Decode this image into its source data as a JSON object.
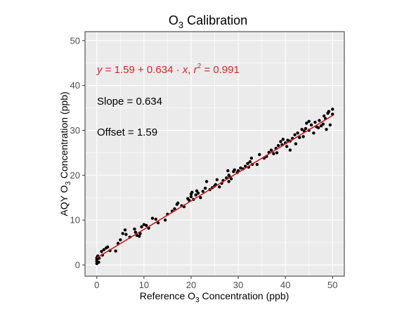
{
  "chart_data": {
    "type": "scatter",
    "title_main": "O",
    "title_sub": "3",
    "title_rest": " Calibration",
    "xlabel_main": "Reference O",
    "xlabel_sub": "3",
    "xlabel_rest": " Concentration (ppb)",
    "ylabel_main": "AQY O",
    "ylabel_sub": "3",
    "ylabel_rest": " Concentration (ppb)",
    "xlim": [
      -2.5,
      52.5
    ],
    "ylim": [
      -2.5,
      52
    ],
    "x_ticks": [
      0,
      10,
      20,
      30,
      40,
      50
    ],
    "y_ticks": [
      0,
      10,
      20,
      30,
      40,
      50
    ],
    "grid": true,
    "background": "#ebebeb",
    "grid_color": "#ffffff",
    "point_color": "#000000",
    "fit_color": "#cc1f1f",
    "annotation_color": "#d62728",
    "fit": {
      "intercept": 1.59,
      "slope": 0.634,
      "r2": 0.991,
      "x_range": [
        0,
        50
      ]
    },
    "annotations": {
      "eq_y": "y",
      "eq_mid": " = 1.59 + 0.634 · ",
      "eq_x": "x",
      "eq_sep": ",  ",
      "eq_r": "r",
      "eq_sup": "2",
      "eq_end": " = 0.991",
      "slope": "Slope = 0.634",
      "offset": "Offset = 1.59"
    },
    "series": [
      {
        "points": [
          [
            0,
            0.3
          ],
          [
            0,
            0.8
          ],
          [
            0,
            1.2
          ],
          [
            0,
            1.6
          ],
          [
            0.2,
            2.0
          ],
          [
            0.4,
            0.6
          ],
          [
            0.5,
            1.5
          ],
          [
            1,
            3.0
          ],
          [
            1.2,
            2.2
          ],
          [
            1.5,
            3.4
          ],
          [
            2,
            3.8
          ],
          [
            2.3,
            4.0
          ],
          [
            2.8,
            3.2
          ],
          [
            4,
            3.1
          ],
          [
            4.5,
            4.8
          ],
          [
            5,
            5.6
          ],
          [
            5.5,
            7.0
          ],
          [
            6,
            7.8
          ],
          [
            6.2,
            6.8
          ],
          [
            7,
            6.2
          ],
          [
            8,
            8.0
          ],
          [
            8.2,
            7.3
          ],
          [
            8.5,
            6.6
          ],
          [
            9,
            6.4
          ],
          [
            9.2,
            7.0
          ],
          [
            9.5,
            8.5
          ],
          [
            10,
            9.0
          ],
          [
            10.5,
            8.8
          ],
          [
            11,
            8.2
          ],
          [
            11.8,
            10.4
          ],
          [
            12.5,
            10.2
          ],
          [
            13,
            9.4
          ],
          [
            14.5,
            10.0
          ],
          [
            15,
            11.3
          ],
          [
            16,
            12.0
          ],
          [
            16.5,
            12.5
          ],
          [
            17,
            13.5
          ],
          [
            17.2,
            13.8
          ],
          [
            18,
            13.2
          ],
          [
            18.5,
            13.0
          ],
          [
            19.3,
            14.8
          ],
          [
            19.6,
            14.4
          ],
          [
            20,
            15.2
          ],
          [
            20,
            15.8
          ],
          [
            20.2,
            16.2
          ],
          [
            20.5,
            14.6
          ],
          [
            21,
            15.6
          ],
          [
            21.2,
            16.5
          ],
          [
            21.5,
            16.0
          ],
          [
            22,
            15.0
          ],
          [
            22.5,
            16.4
          ],
          [
            23,
            17.1
          ],
          [
            23.3,
            18.6
          ],
          [
            24,
            16.8
          ],
          [
            24.5,
            17.2
          ],
          [
            25,
            17.6
          ],
          [
            25.2,
            17.9
          ],
          [
            25.5,
            19.0
          ],
          [
            26,
            17.4
          ],
          [
            26.5,
            18.2
          ],
          [
            26.8,
            18.8
          ],
          [
            27.5,
            19.4
          ],
          [
            27.8,
            21.0
          ],
          [
            28,
            20.0
          ],
          [
            28,
            18.6
          ],
          [
            28.2,
            19.6
          ],
          [
            28.5,
            19.2
          ],
          [
            29,
            20.8
          ],
          [
            29.2,
            21.2
          ],
          [
            29.8,
            20.6
          ],
          [
            30,
            21.0
          ],
          [
            30.5,
            21.6
          ],
          [
            31,
            21.4
          ],
          [
            31.5,
            22.0
          ],
          [
            32,
            22.6
          ],
          [
            32.2,
            21.8
          ],
          [
            32.5,
            23.0
          ],
          [
            32.8,
            23.8
          ],
          [
            33,
            22.4
          ],
          [
            34,
            22.4
          ],
          [
            34.5,
            24.6
          ],
          [
            35.5,
            23.8
          ],
          [
            36,
            24.2
          ],
          [
            36.5,
            25.1
          ],
          [
            37,
            25.6
          ],
          [
            37.5,
            24.8
          ],
          [
            38,
            26.0
          ],
          [
            38.2,
            25.0
          ],
          [
            38.5,
            26.6
          ],
          [
            39,
            27.5
          ],
          [
            39.3,
            26.8
          ],
          [
            39.5,
            28.0
          ],
          [
            40,
            27.2
          ],
          [
            40.3,
            26.4
          ],
          [
            40.5,
            27.8
          ],
          [
            41,
            27.6
          ],
          [
            41,
            25.6
          ],
          [
            41.5,
            28.2
          ],
          [
            42,
            29.0
          ],
          [
            42.2,
            27.0
          ],
          [
            42.6,
            29.4
          ],
          [
            43,
            28.4
          ],
          [
            43.5,
            30.2
          ],
          [
            43.8,
            28.6
          ],
          [
            44,
            29.8
          ],
          [
            44.3,
            30.4
          ],
          [
            44.5,
            31.6
          ],
          [
            45,
            30.0
          ],
          [
            45,
            32.0
          ],
          [
            45.5,
            31.2
          ],
          [
            46,
            29.4
          ],
          [
            46.3,
            31.8
          ],
          [
            46.6,
            30.8
          ],
          [
            47,
            30.6
          ],
          [
            47.2,
            32.2
          ],
          [
            47.6,
            31.0
          ],
          [
            48,
            31.4
          ],
          [
            48.2,
            33.2
          ],
          [
            48.5,
            32.6
          ],
          [
            48.7,
            30.2
          ],
          [
            49,
            33.8
          ],
          [
            49.2,
            34.2
          ],
          [
            49.5,
            31.2
          ],
          [
            50,
            33.6
          ],
          [
            50,
            34.7
          ]
        ]
      }
    ]
  }
}
